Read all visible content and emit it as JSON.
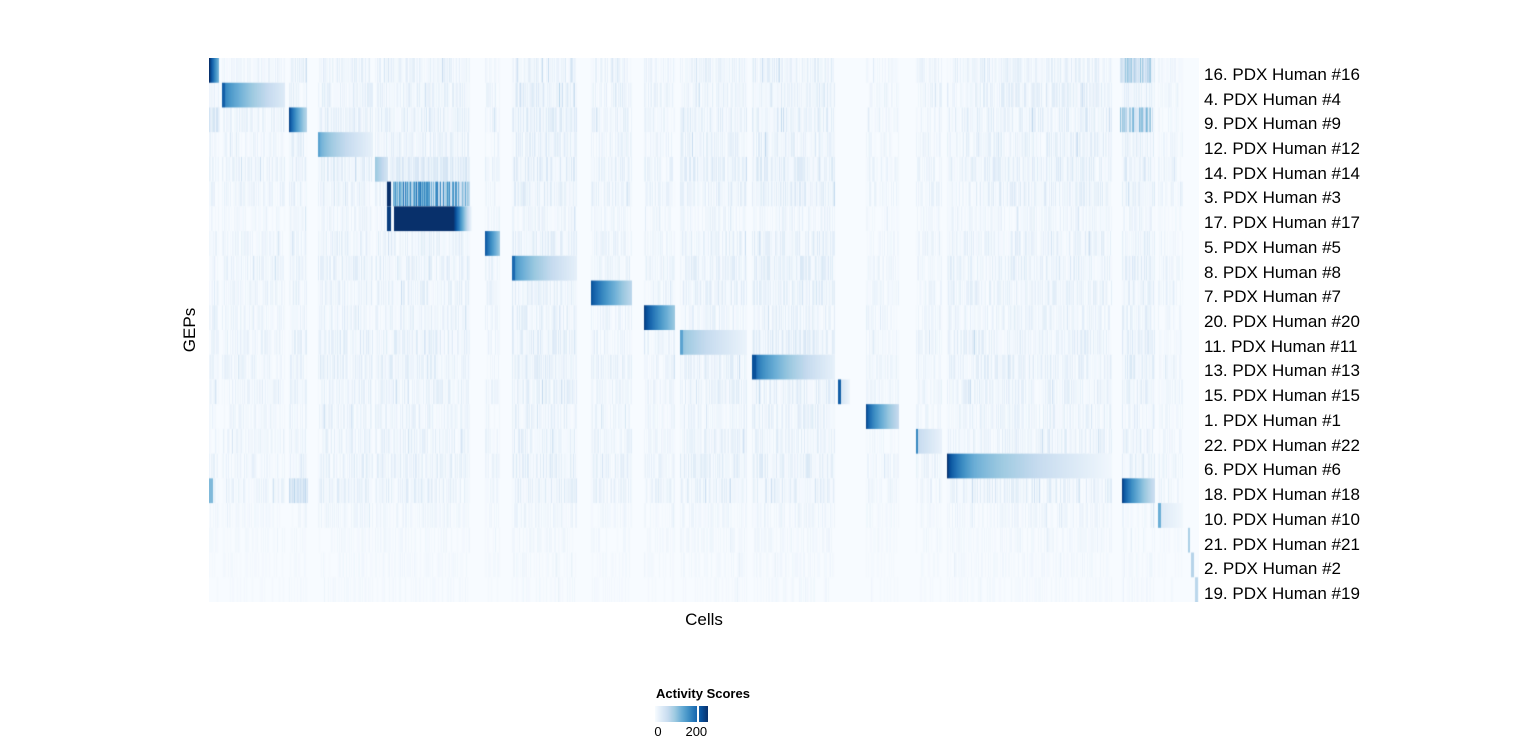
{
  "chart_data": {
    "type": "heatmap",
    "title": "",
    "xlabel": "Cells",
    "ylabel": "GEPs",
    "legend": {
      "title": "Activity Scores",
      "tick_labels": [
        "0",
        "200"
      ],
      "tick_label_positions": [
        0.057,
        0.78
      ],
      "bar_tick_position": 0.8,
      "value_ticks": [
        0,
        200
      ],
      "value_range": [
        0,
        250
      ]
    },
    "colormap": [
      {
        "stop": 0.0,
        "color": "#f7fbff"
      },
      {
        "stop": 0.125,
        "color": "#deebf7"
      },
      {
        "stop": 0.25,
        "color": "#c6dbef"
      },
      {
        "stop": 0.375,
        "color": "#9ecae1"
      },
      {
        "stop": 0.5,
        "color": "#6baed6"
      },
      {
        "stop": 0.625,
        "color": "#4292c6"
      },
      {
        "stop": 0.75,
        "color": "#2171b5"
      },
      {
        "stop": 0.875,
        "color": "#08519c"
      },
      {
        "stop": 1.0,
        "color": "#08306b"
      }
    ],
    "rows": [
      {
        "label": "16. PDX Human #16",
        "noise_scale": 0.9,
        "blocks": [
          {
            "x0": 0.0,
            "x1": 0.0101,
            "v0": 1.0,
            "v1": 0.48,
            "curve": 0.9,
            "striped": 0
          },
          {
            "x0": 0.9202,
            "x1": 0.9515,
            "v0": 0.3,
            "v1": 0.3,
            "curve": 1,
            "striped": 2
          }
        ]
      },
      {
        "label": "4. PDX Human #4",
        "noise_scale": 1.0,
        "blocks": [
          {
            "x0": 0.0131,
            "x1": 0.0162,
            "v0": 0.82,
            "v1": 0.82,
            "curve": 1,
            "striped": 0
          },
          {
            "x0": 0.0162,
            "x1": 0.0768,
            "v0": 0.68,
            "v1": 0.13,
            "curve": 0.75,
            "striped": 0
          }
        ]
      },
      {
        "label": "9. PDX Human #9",
        "noise_scale": 1.0,
        "blocks": [
          {
            "x0": 0.0,
            "x1": 0.0111,
            "v0": 0.18,
            "v1": 0.18,
            "curve": 1,
            "striped": 2
          },
          {
            "x0": 0.0808,
            "x1": 0.099,
            "v0": 0.92,
            "v1": 0.3,
            "curve": 0.75,
            "striped": 0
          },
          {
            "x0": 0.9202,
            "x1": 0.9515,
            "v0": 0.36,
            "v1": 0.36,
            "curve": 1,
            "striped": 2
          }
        ]
      },
      {
        "label": "12. PDX Human #12",
        "noise_scale": 0.9,
        "blocks": [
          {
            "x0": 0.1101,
            "x1": 0.1121,
            "v0": 0.55,
            "v1": 0.55,
            "curve": 1,
            "striped": 0
          },
          {
            "x0": 0.1121,
            "x1": 0.1657,
            "v0": 0.5,
            "v1": 0.08,
            "curve": 0.75,
            "striped": 0
          }
        ]
      },
      {
        "label": "14. PDX Human #14",
        "noise_scale": 1.1,
        "blocks": [
          {
            "x0": 0.1677,
            "x1": 0.1808,
            "v0": 0.38,
            "v1": 0.18,
            "curve": 1,
            "striped": 0
          },
          {
            "x0": 0.1838,
            "x1": 0.2636,
            "v0": 0.13,
            "v1": 0.13,
            "curve": 1,
            "striped": 2
          }
        ]
      },
      {
        "label": "3. PDX Human #3",
        "noise_scale": 1.0,
        "blocks": [
          {
            "x0": 0.1798,
            "x1": 0.1838,
            "v0": 1.0,
            "v1": 1.0,
            "curve": 1,
            "striped": 0
          },
          {
            "x0": 0.1859,
            "x1": 0.2636,
            "v0": 0.62,
            "v1": 0.42,
            "curve": 1,
            "striped": 2
          }
        ]
      },
      {
        "label": "17. PDX Human #17",
        "noise_scale": 0.6,
        "blocks": [
          {
            "x0": 0.1798,
            "x1": 0.1838,
            "v0": 0.95,
            "v1": 0.95,
            "curve": 1,
            "striped": 0
          },
          {
            "x0": 0.1869,
            "x1": 0.2465,
            "v0": 1.0,
            "v1": 1.0,
            "curve": 1,
            "striped": 0
          },
          {
            "x0": 0.2465,
            "x1": 0.2657,
            "v0": 1.0,
            "v1": 0.04,
            "curve": 1,
            "striped": 0
          }
        ]
      },
      {
        "label": "5. PDX Human #5",
        "noise_scale": 0.9,
        "blocks": [
          {
            "x0": 0.2788,
            "x1": 0.2939,
            "v0": 0.85,
            "v1": 0.38,
            "curve": 0.9,
            "striped": 0
          }
        ]
      },
      {
        "label": "8. PDX Human #8",
        "noise_scale": 1.0,
        "blocks": [
          {
            "x0": 0.3061,
            "x1": 0.3091,
            "v0": 0.78,
            "v1": 0.78,
            "curve": 1,
            "striped": 0
          },
          {
            "x0": 0.3091,
            "x1": 0.3717,
            "v0": 0.62,
            "v1": 0.09,
            "curve": 0.7,
            "striped": 0
          }
        ]
      },
      {
        "label": "7. PDX Human #7",
        "noise_scale": 0.9,
        "blocks": [
          {
            "x0": 0.3859,
            "x1": 0.4273,
            "v0": 0.88,
            "v1": 0.28,
            "curve": 0.8,
            "striped": 0
          }
        ]
      },
      {
        "label": "20. PDX Human #20",
        "noise_scale": 0.8,
        "blocks": [
          {
            "x0": 0.4394,
            "x1": 0.4707,
            "v0": 0.95,
            "v1": 0.38,
            "curve": 0.8,
            "striped": 0
          }
        ]
      },
      {
        "label": "11. PDX Human #11",
        "noise_scale": 1.0,
        "blocks": [
          {
            "x0": 0.4758,
            "x1": 0.4788,
            "v0": 0.55,
            "v1": 0.55,
            "curve": 1,
            "striped": 0
          },
          {
            "x0": 0.4788,
            "x1": 0.5434,
            "v0": 0.4,
            "v1": 0.06,
            "curve": 0.8,
            "striped": 0
          }
        ]
      },
      {
        "label": "13. PDX Human #13",
        "noise_scale": 1.0,
        "blocks": [
          {
            "x0": 0.5485,
            "x1": 0.5525,
            "v0": 0.88,
            "v1": 0.88,
            "curve": 1,
            "striped": 0
          },
          {
            "x0": 0.5525,
            "x1": 0.6323,
            "v0": 0.78,
            "v1": 0.08,
            "curve": 0.65,
            "striped": 0
          }
        ]
      },
      {
        "label": "15. PDX Human #15",
        "noise_scale": 0.9,
        "blocks": [
          {
            "x0": 0.6354,
            "x1": 0.6384,
            "v0": 0.82,
            "v1": 0.82,
            "curve": 1,
            "striped": 0
          },
          {
            "x0": 0.6384,
            "x1": 0.6475,
            "v0": 0.18,
            "v1": 0.05,
            "curve": 1,
            "striped": 0
          }
        ]
      },
      {
        "label": "1. PDX Human #1",
        "noise_scale": 0.8,
        "blocks": [
          {
            "x0": 0.6636,
            "x1": 0.697,
            "v0": 0.92,
            "v1": 0.25,
            "curve": 0.65,
            "striped": 0
          }
        ]
      },
      {
        "label": "22. PDX Human #22",
        "noise_scale": 0.9,
        "blocks": [
          {
            "x0": 0.7141,
            "x1": 0.7162,
            "v0": 0.66,
            "v1": 0.66,
            "curve": 1,
            "striped": 0
          },
          {
            "x0": 0.7162,
            "x1": 0.7404,
            "v0": 0.24,
            "v1": 0.07,
            "curve": 1,
            "striped": 0
          }
        ]
      },
      {
        "label": "6. PDX Human #6",
        "noise_scale": 1.0,
        "blocks": [
          {
            "x0": 0.7455,
            "x1": 0.7737,
            "v0": 1.0,
            "v1": 0.5,
            "curve": 0.6,
            "striped": 0
          },
          {
            "x0": 0.7737,
            "x1": 0.9121,
            "v0": 0.5,
            "v1": 0.03,
            "curve": 0.8,
            "striped": 0
          }
        ]
      },
      {
        "label": "18. PDX Human #18",
        "noise_scale": 1.0,
        "blocks": [
          {
            "x0": 0.0,
            "x1": 0.004,
            "v0": 0.45,
            "v1": 0.45,
            "curve": 1,
            "striped": 0
          },
          {
            "x0": 0.0808,
            "x1": 0.0999,
            "v0": 0.22,
            "v1": 0.22,
            "curve": 1,
            "striped": 2
          },
          {
            "x0": 0.9222,
            "x1": 0.9556,
            "v0": 0.95,
            "v1": 0.22,
            "curve": 0.7,
            "striped": 0
          }
        ]
      },
      {
        "label": "10. PDX Human #10",
        "noise_scale": 0.5,
        "blocks": [
          {
            "x0": 0.9586,
            "x1": 0.9616,
            "v0": 0.5,
            "v1": 0.5,
            "curve": 1,
            "striped": 0
          },
          {
            "x0": 0.9616,
            "x1": 0.9838,
            "v0": 0.13,
            "v1": 0.03,
            "curve": 1,
            "striped": 0
          }
        ]
      },
      {
        "label": "21. PDX Human #21",
        "noise_scale": 0.35,
        "blocks": [
          {
            "x0": 0.9889,
            "x1": 0.9909,
            "v0": 0.33,
            "v1": 0.33,
            "curve": 1,
            "striped": 0
          }
        ]
      },
      {
        "label": "2. PDX Human #2",
        "noise_scale": 0.3,
        "blocks": [
          {
            "x0": 0.9919,
            "x1": 0.9949,
            "v0": 0.3,
            "v1": 0.3,
            "curve": 1,
            "striped": 0
          }
        ]
      },
      {
        "label": "19. PDX Human #19",
        "noise_scale": 0.25,
        "blocks": [
          {
            "x0": 0.996,
            "x1": 0.9985,
            "v0": 0.28,
            "v1": 0.28,
            "curve": 1,
            "striped": 0
          }
        ]
      }
    ],
    "noise_clusters": [
      {
        "x0": 0.0,
        "x1": 0.0101,
        "v": 0.05
      },
      {
        "x0": 0.0131,
        "x1": 0.0768,
        "v": 0.05
      },
      {
        "x0": 0.0808,
        "x1": 0.099,
        "v": 0.07
      },
      {
        "x0": 0.1101,
        "x1": 0.1657,
        "v": 0.07
      },
      {
        "x0": 0.1677,
        "x1": 0.2636,
        "v": 0.07
      },
      {
        "x0": 0.2788,
        "x1": 0.2939,
        "v": 0.05
      },
      {
        "x0": 0.3061,
        "x1": 0.3717,
        "v": 0.08
      },
      {
        "x0": 0.3859,
        "x1": 0.4273,
        "v": 0.06
      },
      {
        "x0": 0.4394,
        "x1": 0.4707,
        "v": 0.05
      },
      {
        "x0": 0.4758,
        "x1": 0.5434,
        "v": 0.07
      },
      {
        "x0": 0.5485,
        "x1": 0.6323,
        "v": 0.08
      },
      {
        "x0": 0.6636,
        "x1": 0.697,
        "v": 0.04
      },
      {
        "x0": 0.7141,
        "x1": 0.7404,
        "v": 0.05
      },
      {
        "x0": 0.7455,
        "x1": 0.9121,
        "v": 0.07
      },
      {
        "x0": 0.9222,
        "x1": 0.9556,
        "v": 0.08
      },
      {
        "x0": 0.9586,
        "x1": 0.9838,
        "v": 0.04
      }
    ]
  }
}
